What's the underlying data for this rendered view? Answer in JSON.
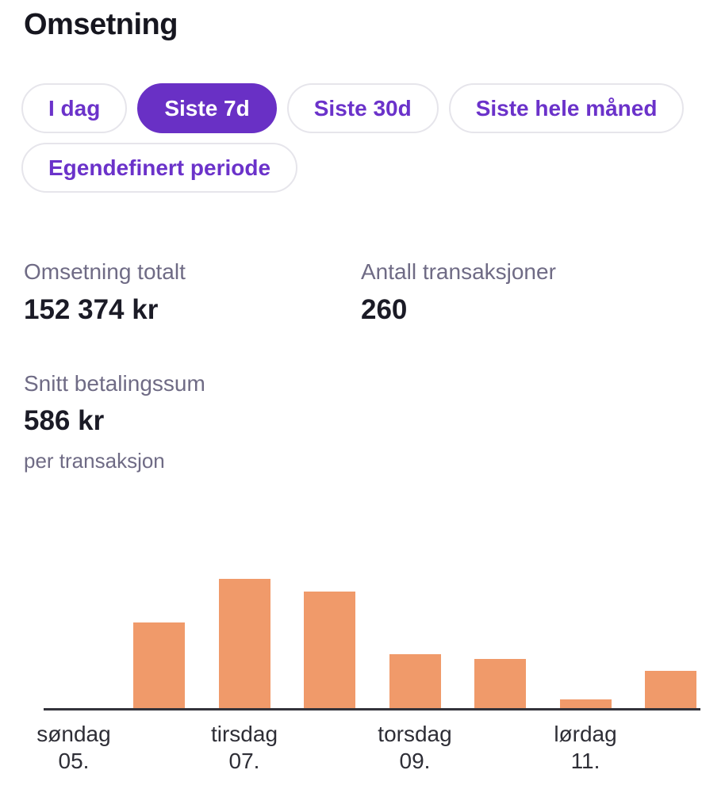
{
  "header": {
    "title": "Omsetning"
  },
  "filters": {
    "options": [
      {
        "label": "I dag",
        "selected": false
      },
      {
        "label": "Siste 7d",
        "selected": true
      },
      {
        "label": "Siste 30d",
        "selected": false
      },
      {
        "label": "Siste hele måned",
        "selected": false
      },
      {
        "label": "Egendefinert periode",
        "selected": false
      }
    ]
  },
  "stats": [
    {
      "label": "Omsetning totalt",
      "value": "152 374 kr",
      "sublabel": ""
    },
    {
      "label": "Antall transaksjoner",
      "value": "260",
      "sublabel": ""
    },
    {
      "label": "Snitt betalingssum",
      "value": "586 kr",
      "sublabel": "per transaksjon"
    }
  ],
  "chart_data": {
    "type": "bar",
    "title": "",
    "xlabel": "",
    "ylabel": "",
    "num_slots": 8,
    "values_relative_pct_of_max": [
      0,
      66,
      100,
      90,
      42,
      38,
      7,
      29
    ],
    "x_tick_labels": [
      {
        "slot": 0,
        "line1": "søndag",
        "line2": "05."
      },
      {
        "slot": 2,
        "line1": "tirsdag",
        "line2": "07."
      },
      {
        "slot": 4,
        "line1": "torsdag",
        "line2": "09."
      },
      {
        "slot": 6,
        "line1": "lørdag",
        "line2": "11."
      }
    ],
    "y_axis": "none — no y-axis labels or gridlines shown; values are relative bar heights (% of tallest bar, tirsdag 07.)",
    "legend": "none",
    "bar_color": "#F09A6A",
    "axis_color": "#33333B"
  },
  "colors": {
    "accent_purple": "#6930C5",
    "pill_text_purple": "#6B32CA",
    "pill_border": "#E6E5EB",
    "heading_dark": "#16161F",
    "stat_label_gray": "#6F6B85",
    "stat_value_dark": "#1B1B26",
    "bar_orange": "#F09A6A",
    "axis_dark": "#33333B",
    "tick_text": "#2E2E36",
    "background": "#FFFFFF"
  }
}
